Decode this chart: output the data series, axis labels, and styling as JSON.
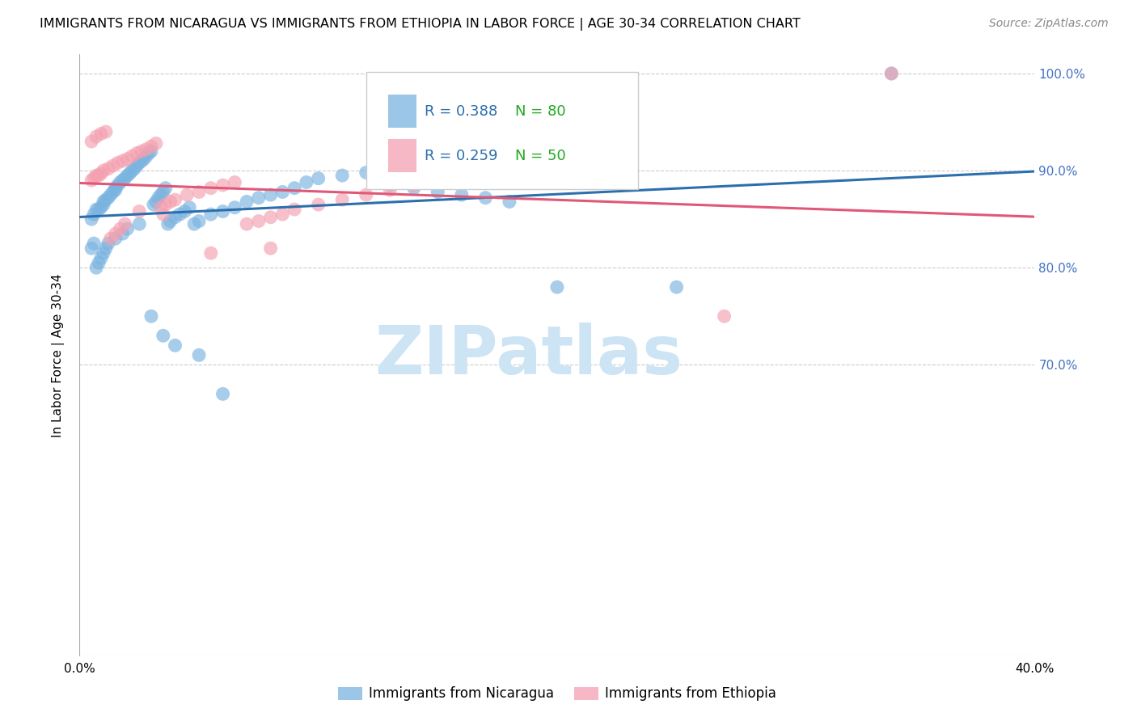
{
  "title": "IMMIGRANTS FROM NICARAGUA VS IMMIGRANTS FROM ETHIOPIA IN LABOR FORCE | AGE 30-34 CORRELATION CHART",
  "source": "Source: ZipAtlas.com",
  "ylabel": "In Labor Force | Age 30-34",
  "xlim": [
    0.0,
    0.4
  ],
  "ylim": [
    0.4,
    1.02
  ],
  "xticks": [
    0.0,
    0.1,
    0.2,
    0.3,
    0.4
  ],
  "xtick_labels": [
    "0.0%",
    "",
    "",
    "",
    "40.0%"
  ],
  "yticks": [
    0.7,
    0.8,
    0.9,
    1.0
  ],
  "ytick_labels": [
    "70.0%",
    "80.0%",
    "90.0%",
    "100.0%"
  ],
  "blue_color": "#7ab3e0",
  "pink_color": "#f4a0b0",
  "blue_line_color": "#2c6fad",
  "pink_line_color": "#e05878",
  "legend_blue_R": "R = 0.388",
  "legend_blue_N": "N = 80",
  "legend_pink_R": "R = 0.259",
  "legend_pink_N": "N = 50",
  "watermark": "ZIPatlas",
  "title_fontsize": 11.5,
  "axis_label_fontsize": 11,
  "tick_fontsize": 11,
  "legend_fontsize": 13,
  "source_fontsize": 10,
  "watermark_fontsize": 60,
  "watermark_color": "#cde4f5",
  "ytick_color": "#4472c4",
  "background_color": "#ffffff",
  "grid_color": "#cccccc",
  "blue_scatter_x": [
    0.005,
    0.006,
    0.007,
    0.008,
    0.009,
    0.01,
    0.01,
    0.011,
    0.012,
    0.013,
    0.014,
    0.015,
    0.015,
    0.016,
    0.017,
    0.018,
    0.019,
    0.02,
    0.021,
    0.022,
    0.023,
    0.024,
    0.025,
    0.026,
    0.027,
    0.028,
    0.029,
    0.03,
    0.031,
    0.032,
    0.033,
    0.034,
    0.035,
    0.036,
    0.037,
    0.038,
    0.04,
    0.042,
    0.044,
    0.046,
    0.048,
    0.05,
    0.055,
    0.06,
    0.065,
    0.07,
    0.075,
    0.08,
    0.085,
    0.09,
    0.095,
    0.1,
    0.11,
    0.12,
    0.13,
    0.14,
    0.15,
    0.16,
    0.17,
    0.18,
    0.005,
    0.006,
    0.007,
    0.008,
    0.009,
    0.01,
    0.011,
    0.012,
    0.015,
    0.018,
    0.02,
    0.025,
    0.03,
    0.035,
    0.04,
    0.05,
    0.06,
    0.2,
    0.25,
    0.34
  ],
  "blue_scatter_y": [
    0.85,
    0.855,
    0.86,
    0.86,
    0.862,
    0.865,
    0.868,
    0.87,
    0.872,
    0.875,
    0.878,
    0.88,
    0.882,
    0.885,
    0.888,
    0.89,
    0.892,
    0.895,
    0.897,
    0.9,
    0.902,
    0.905,
    0.908,
    0.91,
    0.912,
    0.915,
    0.918,
    0.92,
    0.865,
    0.868,
    0.872,
    0.875,
    0.878,
    0.882,
    0.845,
    0.848,
    0.852,
    0.855,
    0.858,
    0.862,
    0.845,
    0.848,
    0.855,
    0.858,
    0.862,
    0.868,
    0.872,
    0.875,
    0.878,
    0.882,
    0.888,
    0.892,
    0.895,
    0.898,
    0.885,
    0.882,
    0.878,
    0.875,
    0.872,
    0.868,
    0.82,
    0.825,
    0.8,
    0.805,
    0.81,
    0.815,
    0.82,
    0.825,
    0.83,
    0.835,
    0.84,
    0.845,
    0.75,
    0.73,
    0.72,
    0.71,
    0.67,
    0.78,
    0.78,
    1.0
  ],
  "pink_scatter_x": [
    0.005,
    0.006,
    0.007,
    0.008,
    0.009,
    0.01,
    0.012,
    0.014,
    0.016,
    0.018,
    0.02,
    0.022,
    0.024,
    0.026,
    0.028,
    0.03,
    0.032,
    0.034,
    0.036,
    0.038,
    0.04,
    0.045,
    0.05,
    0.055,
    0.06,
    0.065,
    0.07,
    0.075,
    0.08,
    0.085,
    0.09,
    0.1,
    0.11,
    0.12,
    0.13,
    0.14,
    0.005,
    0.007,
    0.009,
    0.011,
    0.013,
    0.015,
    0.017,
    0.019,
    0.025,
    0.035,
    0.055,
    0.08,
    0.27,
    0.34
  ],
  "pink_scatter_y": [
    0.89,
    0.892,
    0.895,
    0.895,
    0.897,
    0.9,
    0.902,
    0.905,
    0.908,
    0.91,
    0.912,
    0.915,
    0.918,
    0.92,
    0.922,
    0.925,
    0.928,
    0.862,
    0.865,
    0.868,
    0.87,
    0.875,
    0.878,
    0.882,
    0.885,
    0.888,
    0.845,
    0.848,
    0.852,
    0.855,
    0.86,
    0.865,
    0.87,
    0.875,
    0.88,
    0.885,
    0.93,
    0.935,
    0.938,
    0.94,
    0.83,
    0.835,
    0.84,
    0.845,
    0.858,
    0.855,
    0.815,
    0.82,
    0.75,
    1.0
  ]
}
